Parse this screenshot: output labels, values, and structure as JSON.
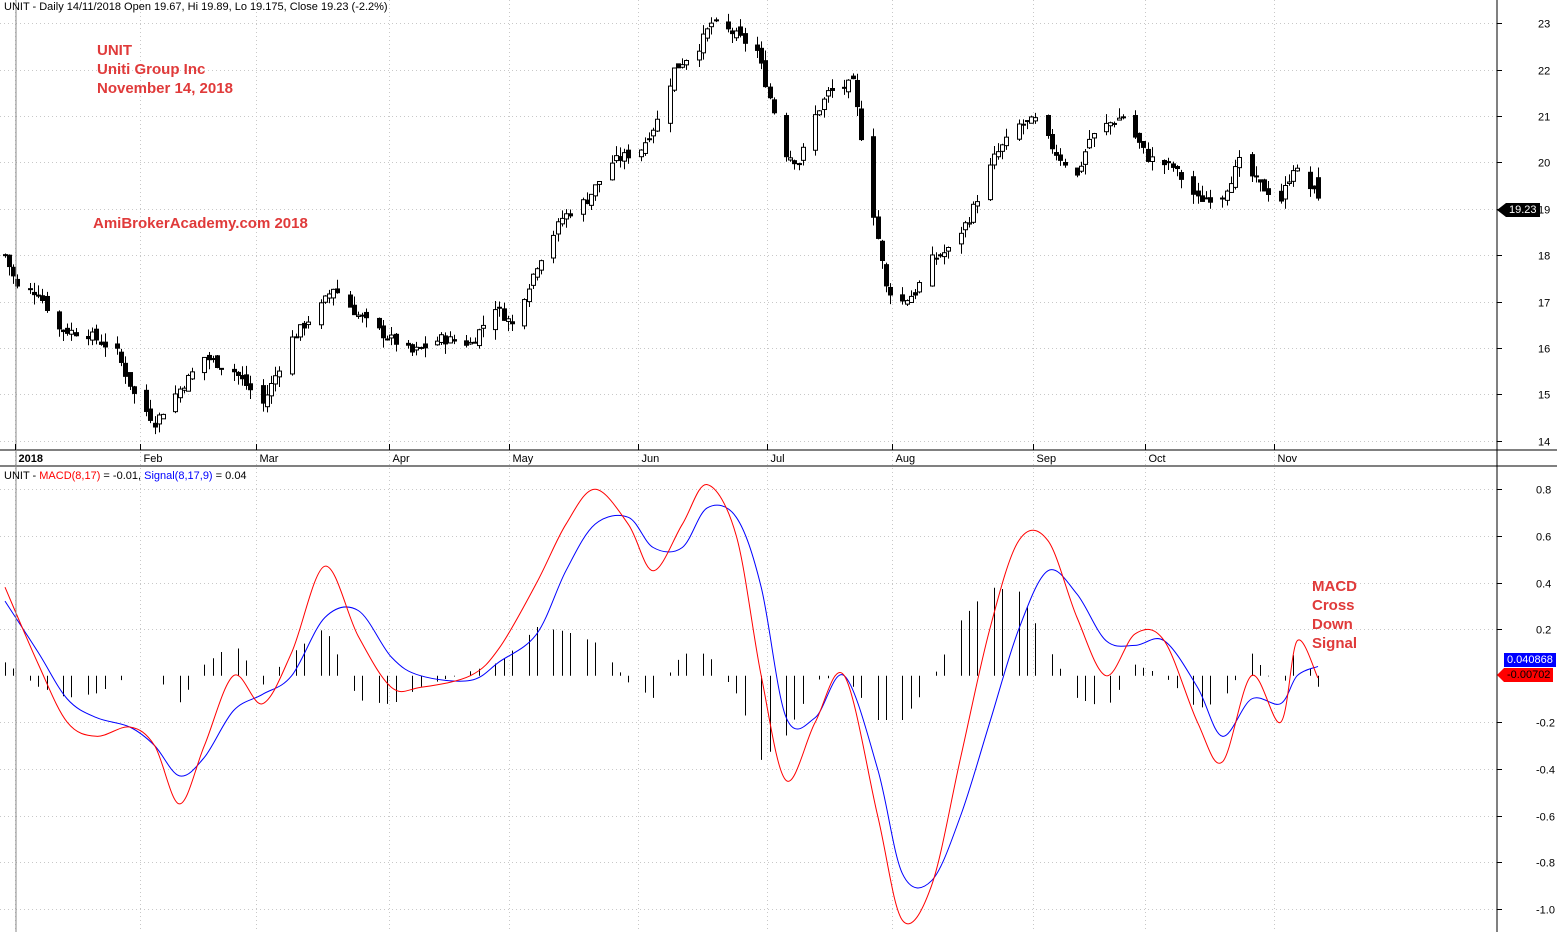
{
  "header": {
    "price_line": "UNIT - Daily 14/11/2018 Open 19.67, Hi 19.89, Lo 19.175, Close 19.23 (-2.2%)",
    "macd_prefix": "UNIT - ",
    "macd_name": "MACD(8,17)",
    "macd_eq": " = -0.01, ",
    "signal_name": "Signal(8,17,9)",
    "signal_eq": " = 0.04"
  },
  "annotations": {
    "ticker": "UNIT",
    "company": "Uniti Group Inc",
    "date": "November 14, 2018",
    "watermark": "AmiBrokerAcademy.com  2018",
    "macd_note": [
      "MACD",
      "Cross",
      "Down",
      "Signal"
    ]
  },
  "badges": {
    "last_price": "19.23",
    "signal_value": "0.040868",
    "macd_value": "-0.00702"
  },
  "colors": {
    "macd": "#ff0000",
    "signal": "#0000ff",
    "histogram": "#000000",
    "annotation": "#e03a3a",
    "grid": "#c8c8c8"
  },
  "chart_data": [
    {
      "type": "candlestick",
      "title": "UNIT - Daily 14/11/2018",
      "ylim": [
        13.8,
        23.5
      ],
      "y_ticks": [
        14,
        15,
        16,
        17,
        18,
        19,
        20,
        21,
        22,
        23
      ],
      "month_labels": [
        "2018",
        "Feb",
        "Mar",
        "Apr",
        "May",
        "Jun",
        "Jul",
        "Aug",
        "Sep",
        "Oct",
        "Nov"
      ],
      "grid": true,
      "close_path": [
        [
          "2018-01-02",
          18.0
        ],
        [
          "2018-01-05",
          17.3
        ],
        [
          "2018-01-10",
          17.2
        ],
        [
          "2018-01-15",
          16.4
        ],
        [
          "2018-01-22",
          16.3
        ],
        [
          "2018-01-29",
          15.9
        ],
        [
          "2018-02-02",
          15.0
        ],
        [
          "2018-02-07",
          14.4
        ],
        [
          "2018-02-12",
          15.0
        ],
        [
          "2018-02-19",
          15.8
        ],
        [
          "2018-02-26",
          15.5
        ],
        [
          "2018-03-05",
          14.8
        ],
        [
          "2018-03-12",
          16.2
        ],
        [
          "2018-03-19",
          16.9
        ],
        [
          "2018-03-22",
          17.3
        ],
        [
          "2018-03-28",
          16.7
        ],
        [
          "2018-04-03",
          16.3
        ],
        [
          "2018-04-10",
          15.9
        ],
        [
          "2018-04-17",
          16.2
        ],
        [
          "2018-04-24",
          16.1
        ],
        [
          "2018-04-30",
          16.9
        ],
        [
          "2018-05-04",
          16.5
        ],
        [
          "2018-05-10",
          17.8
        ],
        [
          "2018-05-16",
          18.8
        ],
        [
          "2018-05-22",
          19.2
        ],
        [
          "2018-05-28",
          20.0
        ],
        [
          "2018-06-04",
          20.3
        ],
        [
          "2018-06-08",
          20.9
        ],
        [
          "2018-06-12",
          22.0
        ],
        [
          "2018-06-18",
          22.5
        ],
        [
          "2018-06-21",
          23.0
        ],
        [
          "2018-06-26",
          22.8
        ],
        [
          "2018-07-02",
          22.4
        ],
        [
          "2018-07-05",
          21.4
        ],
        [
          "2018-07-09",
          20.2
        ],
        [
          "2018-07-12",
          20.0
        ],
        [
          "2018-07-16",
          21.0
        ],
        [
          "2018-07-19",
          21.5
        ],
        [
          "2018-07-25",
          21.7
        ],
        [
          "2018-07-30",
          18.9
        ],
        [
          "2018-08-02",
          17.3
        ],
        [
          "2018-08-06",
          17.0
        ],
        [
          "2018-08-09",
          17.2
        ],
        [
          "2018-08-13",
          17.9
        ],
        [
          "2018-08-17",
          18.1
        ],
        [
          "2018-08-22",
          18.8
        ],
        [
          "2018-08-28",
          20.1
        ],
        [
          "2018-09-03",
          20.8
        ],
        [
          "2018-09-07",
          20.9
        ],
        [
          "2018-09-12",
          20.2
        ],
        [
          "2018-09-17",
          19.7
        ],
        [
          "2018-09-20",
          20.5
        ],
        [
          "2018-09-24",
          20.8
        ],
        [
          "2018-09-28",
          21.0
        ],
        [
          "2018-10-04",
          20.1
        ],
        [
          "2018-10-10",
          19.9
        ],
        [
          "2018-10-16",
          19.2
        ],
        [
          "2018-10-22",
          19.3
        ],
        [
          "2018-10-26",
          20.0
        ],
        [
          "2018-10-31",
          19.5
        ],
        [
          "2018-11-05",
          19.2
        ],
        [
          "2018-11-08",
          19.9
        ],
        [
          "2018-11-14",
          19.23
        ]
      ],
      "last": {
        "date": "2018-11-14",
        "open": 19.67,
        "high": 19.89,
        "low": 19.175,
        "close": 19.23
      }
    },
    {
      "type": "line",
      "title": "UNIT - MACD(8,17) = -0.01, Signal(8,17,9) = 0.04",
      "ylim": [
        -1.1,
        0.9
      ],
      "y_ticks": [
        -1.0,
        -0.8,
        -0.6,
        -0.4,
        -0.2,
        0.2,
        0.4,
        0.6,
        0.8
      ],
      "grid": true,
      "series": [
        {
          "name": "MACD(8,17)",
          "points": [
            [
              "2018-01-02",
              0.38
            ],
            [
              "2018-01-10",
              0.05
            ],
            [
              "2018-01-17",
              -0.2
            ],
            [
              "2018-01-24",
              -0.26
            ],
            [
              "2018-02-01",
              -0.22
            ],
            [
              "2018-02-07",
              -0.3
            ],
            [
              "2018-02-13",
              -0.55
            ],
            [
              "2018-02-19",
              -0.3
            ],
            [
              "2018-02-26",
              0.0
            ],
            [
              "2018-03-05",
              -0.12
            ],
            [
              "2018-03-12",
              0.1
            ],
            [
              "2018-03-20",
              0.47
            ],
            [
              "2018-03-28",
              0.17
            ],
            [
              "2018-04-05",
              -0.05
            ],
            [
              "2018-04-12",
              -0.05
            ],
            [
              "2018-04-24",
              0.0
            ],
            [
              "2018-05-01",
              0.12
            ],
            [
              "2018-05-10",
              0.4
            ],
            [
              "2018-05-17",
              0.65
            ],
            [
              "2018-05-24",
              0.8
            ],
            [
              "2018-06-01",
              0.65
            ],
            [
              "2018-06-07",
              0.45
            ],
            [
              "2018-06-14",
              0.65
            ],
            [
              "2018-06-20",
              0.82
            ],
            [
              "2018-06-27",
              0.6
            ],
            [
              "2018-07-03",
              0.0
            ],
            [
              "2018-07-09",
              -0.45
            ],
            [
              "2018-07-16",
              -0.2
            ],
            [
              "2018-07-23",
              0.0
            ],
            [
              "2018-07-31",
              -0.6
            ],
            [
              "2018-08-06",
              -1.05
            ],
            [
              "2018-08-13",
              -0.9
            ],
            [
              "2018-08-20",
              -0.35
            ],
            [
              "2018-08-27",
              0.2
            ],
            [
              "2018-09-03",
              0.58
            ],
            [
              "2018-09-10",
              0.58
            ],
            [
              "2018-09-17",
              0.25
            ],
            [
              "2018-09-24",
              0.0
            ],
            [
              "2018-10-01",
              0.18
            ],
            [
              "2018-10-08",
              0.15
            ],
            [
              "2018-10-16",
              -0.2
            ],
            [
              "2018-10-22",
              -0.37
            ],
            [
              "2018-10-29",
              0.0
            ],
            [
              "2018-11-05",
              -0.2
            ],
            [
              "2018-11-09",
              0.15
            ],
            [
              "2018-11-14",
              -0.01
            ]
          ]
        },
        {
          "name": "Signal(8,17,9)",
          "points": [
            [
              "2018-01-02",
              0.32
            ],
            [
              "2018-01-10",
              0.1
            ],
            [
              "2018-01-17",
              -0.1
            ],
            [
              "2018-01-24",
              -0.18
            ],
            [
              "2018-02-01",
              -0.22
            ],
            [
              "2018-02-07",
              -0.3
            ],
            [
              "2018-02-13",
              -0.43
            ],
            [
              "2018-02-19",
              -0.35
            ],
            [
              "2018-02-26",
              -0.15
            ],
            [
              "2018-03-05",
              -0.08
            ],
            [
              "2018-03-12",
              0.0
            ],
            [
              "2018-03-20",
              0.25
            ],
            [
              "2018-03-28",
              0.28
            ],
            [
              "2018-04-05",
              0.08
            ],
            [
              "2018-04-12",
              0.0
            ],
            [
              "2018-04-24",
              -0.02
            ],
            [
              "2018-05-01",
              0.06
            ],
            [
              "2018-05-10",
              0.18
            ],
            [
              "2018-05-17",
              0.45
            ],
            [
              "2018-05-24",
              0.65
            ],
            [
              "2018-06-01",
              0.68
            ],
            [
              "2018-06-07",
              0.55
            ],
            [
              "2018-06-14",
              0.55
            ],
            [
              "2018-06-20",
              0.72
            ],
            [
              "2018-06-27",
              0.68
            ],
            [
              "2018-07-03",
              0.38
            ],
            [
              "2018-07-09",
              -0.18
            ],
            [
              "2018-07-16",
              -0.18
            ],
            [
              "2018-07-23",
              0.0
            ],
            [
              "2018-07-31",
              -0.4
            ],
            [
              "2018-08-06",
              -0.85
            ],
            [
              "2018-08-13",
              -0.88
            ],
            [
              "2018-08-20",
              -0.6
            ],
            [
              "2018-08-27",
              -0.2
            ],
            [
              "2018-09-03",
              0.2
            ],
            [
              "2018-09-10",
              0.45
            ],
            [
              "2018-09-17",
              0.35
            ],
            [
              "2018-09-24",
              0.15
            ],
            [
              "2018-10-01",
              0.13
            ],
            [
              "2018-10-08",
              0.15
            ],
            [
              "2018-10-16",
              -0.05
            ],
            [
              "2018-10-22",
              -0.26
            ],
            [
              "2018-10-29",
              -0.1
            ],
            [
              "2018-11-05",
              -0.12
            ],
            [
              "2018-11-09",
              0.0
            ],
            [
              "2018-11-14",
              0.04
            ]
          ]
        }
      ],
      "histogram": {
        "name": "MACD - Signal",
        "color": "#000000"
      }
    }
  ]
}
